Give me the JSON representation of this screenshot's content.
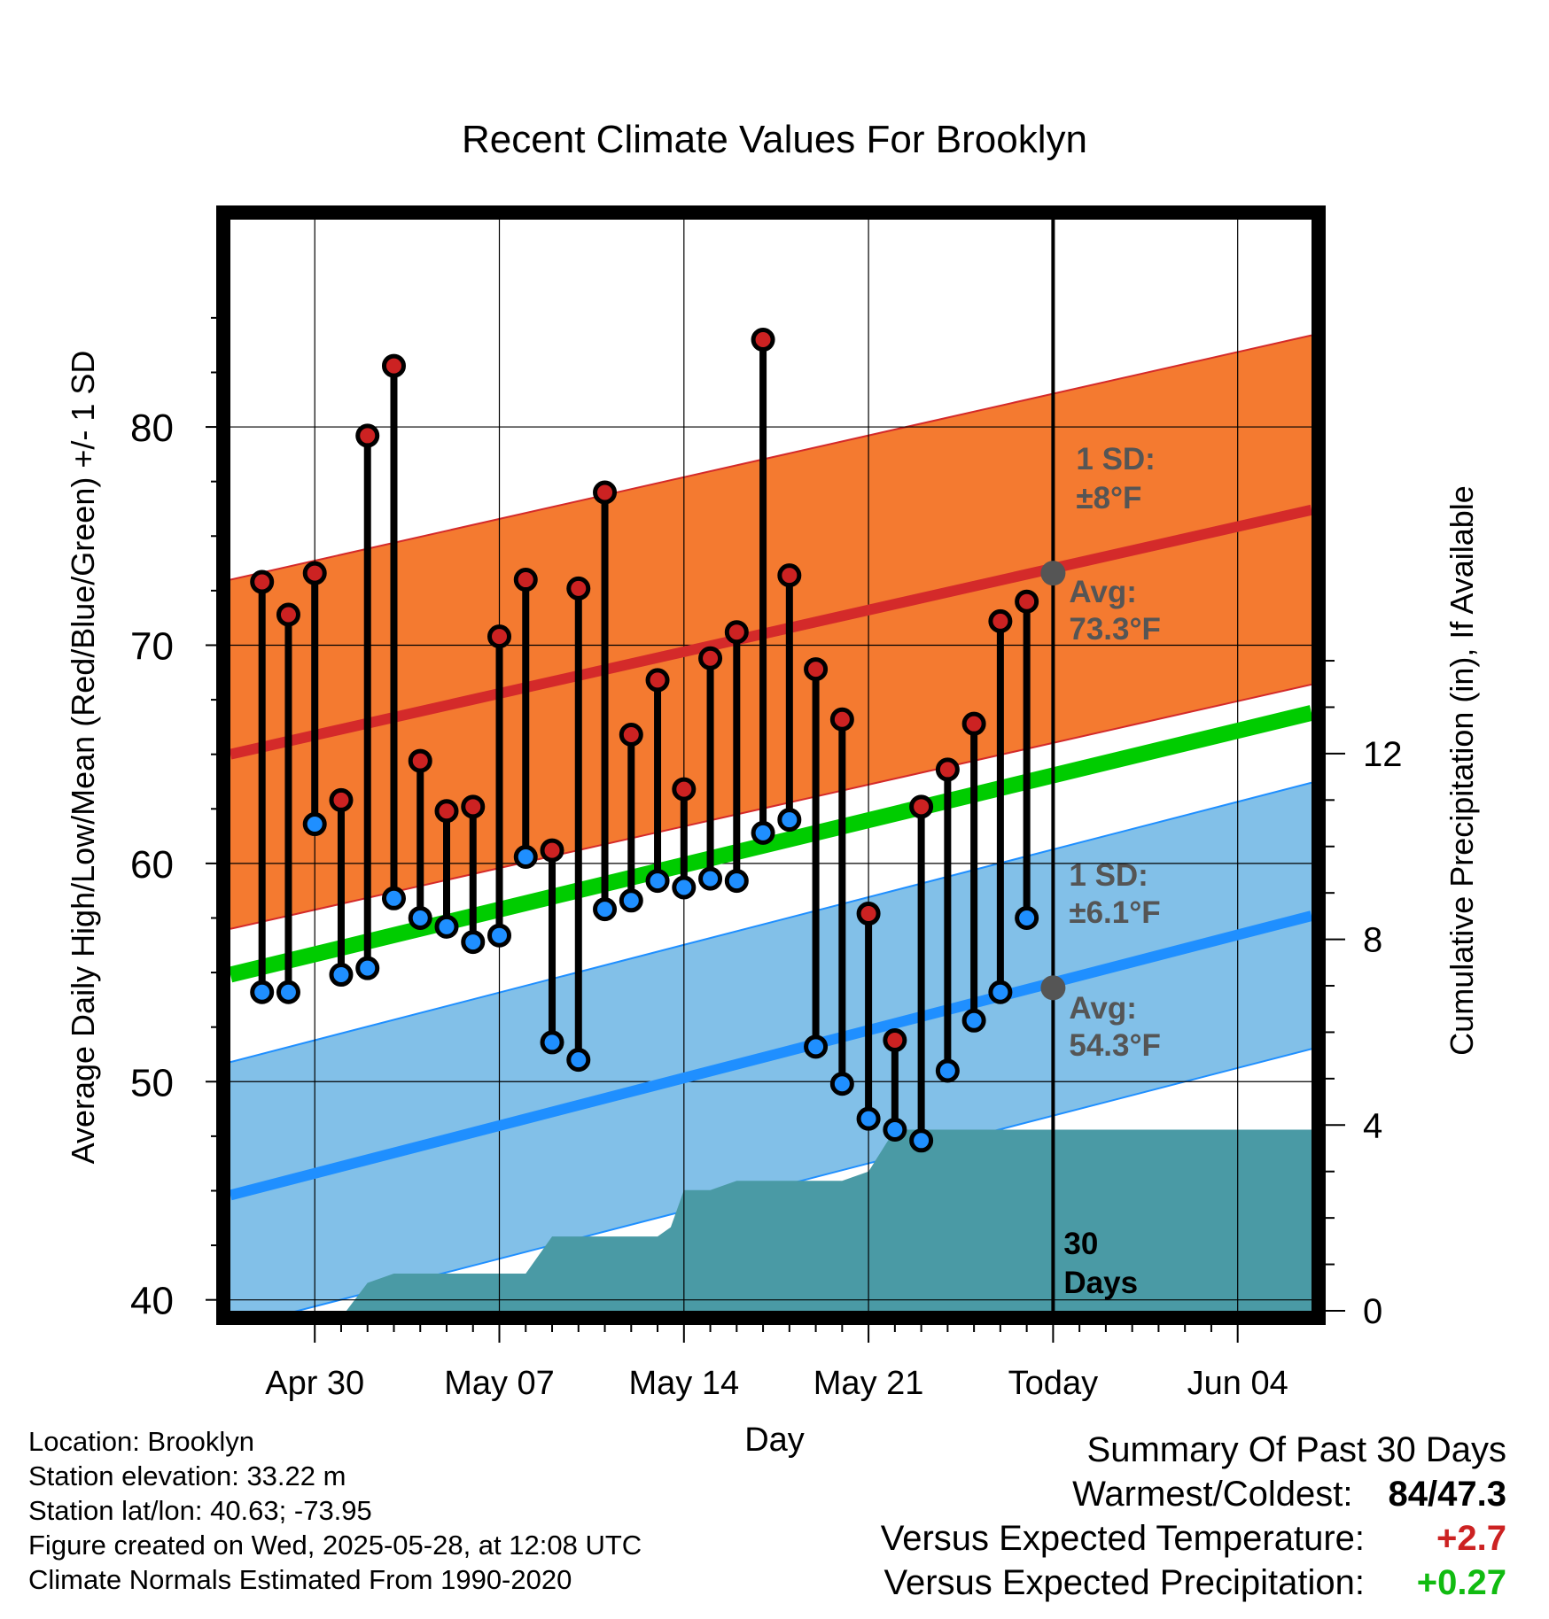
{
  "chart_data": {
    "type": "line",
    "title": "Recent Climate Values For Brooklyn",
    "xlabel": "Day",
    "ylabel": "Average Daily High/Low/Mean (Red/Blue/Green) +/- 1 SD",
    "y2label": "Cumulative Precipitation (in), If Available",
    "x_ticks": [
      "Apr 30",
      "May 07",
      "May 14",
      "May 21",
      "Today",
      "Jun 04"
    ],
    "x_tick_days": [
      0,
      7,
      14,
      21,
      28,
      35
    ],
    "x_range_days": [
      -3.2,
      37.8
    ],
    "today_day": 28,
    "ylim": [
      39.5,
      89.5
    ],
    "y_ticks": [
      40,
      50,
      60,
      70,
      80
    ],
    "y2lim": [
      0,
      23.5
    ],
    "y2_ticks": [
      0,
      4,
      8,
      12
    ],
    "grid": true,
    "normal_high": {
      "start": 65.0,
      "end": 76.2,
      "sd": 8,
      "color": "#d42a2a",
      "band_color": "#f47a30"
    },
    "normal_low": {
      "start": 44.8,
      "end": 57.6,
      "sd": 6.1,
      "color": "#1f8fff",
      "band_color": "#82c0e8"
    },
    "normal_mean": {
      "start": 54.9,
      "end": 66.9,
      "color": "#00cc00"
    },
    "daily": [
      {
        "day": -2,
        "high": 72.9,
        "low": 54.1
      },
      {
        "day": -1,
        "high": 71.4,
        "low": 54.1
      },
      {
        "day": 0,
        "high": 73.3,
        "low": 61.8
      },
      {
        "day": 1,
        "high": 62.9,
        "low": 54.9
      },
      {
        "day": 2,
        "high": 79.6,
        "low": 55.2
      },
      {
        "day": 3,
        "high": 82.8,
        "low": 58.4
      },
      {
        "day": 4,
        "high": 64.7,
        "low": 57.5
      },
      {
        "day": 5,
        "high": 62.4,
        "low": 57.1
      },
      {
        "day": 6,
        "high": 62.6,
        "low": 56.4
      },
      {
        "day": 7,
        "high": 70.4,
        "low": 56.7
      },
      {
        "day": 8,
        "high": 73.0,
        "low": 60.3
      },
      {
        "day": 9,
        "high": 60.6,
        "low": 51.8
      },
      {
        "day": 10,
        "high": 72.6,
        "low": 51.0
      },
      {
        "day": 11,
        "high": 77.0,
        "low": 57.9
      },
      {
        "day": 12,
        "high": 65.9,
        "low": 58.3
      },
      {
        "day": 13,
        "high": 68.4,
        "low": 59.2
      },
      {
        "day": 14,
        "high": 63.4,
        "low": 58.9
      },
      {
        "day": 15,
        "high": 69.4,
        "low": 59.3
      },
      {
        "day": 16,
        "high": 70.6,
        "low": 59.2
      },
      {
        "day": 17,
        "high": 84.0,
        "low": 61.4
      },
      {
        "day": 18,
        "high": 73.2,
        "low": 62.0
      },
      {
        "day": 19,
        "high": 68.9,
        "low": 51.6
      },
      {
        "day": 20,
        "high": 66.6,
        "low": 49.9
      },
      {
        "day": 21,
        "high": 57.7,
        "low": 48.3
      },
      {
        "day": 22,
        "high": 51.9,
        "low": 47.8
      },
      {
        "day": 23,
        "high": 62.6,
        "low": 47.3
      },
      {
        "day": 24,
        "high": 64.3,
        "low": 50.5
      },
      {
        "day": 25,
        "high": 66.4,
        "low": 52.8
      },
      {
        "day": 26,
        "high": 71.1,
        "low": 54.1
      },
      {
        "day": 27,
        "high": 72.0,
        "low": 57.5
      }
    ],
    "precip_cumulative": [
      {
        "day": -3.2,
        "value": 0
      },
      {
        "day": 1.2,
        "value": 0
      },
      {
        "day": 2.0,
        "value": 0.6
      },
      {
        "day": 3.0,
        "value": 0.8
      },
      {
        "day": 8.0,
        "value": 0.8
      },
      {
        "day": 9.0,
        "value": 1.6
      },
      {
        "day": 13.0,
        "value": 1.6
      },
      {
        "day": 13.5,
        "value": 1.8
      },
      {
        "day": 14.0,
        "value": 2.6
      },
      {
        "day": 15.0,
        "value": 2.6
      },
      {
        "day": 16.0,
        "value": 2.8
      },
      {
        "day": 20.0,
        "value": 2.8
      },
      {
        "day": 21.0,
        "value": 3.0
      },
      {
        "day": 22.0,
        "value": 3.9
      },
      {
        "day": 37.8,
        "value": 3.9
      }
    ],
    "annotations": {
      "high_sd_label": "1 SD:",
      "high_sd_value": "±8°F",
      "high_avg_label": "Avg:",
      "high_avg_value": "73.3°F",
      "low_sd_label": "1 SD:",
      "low_sd_value": "±6.1°F",
      "low_avg_label": "Avg:",
      "low_avg_value": "54.3°F",
      "window_label_1": "30",
      "window_label_2": "Days"
    },
    "today_avg_high": 73.3,
    "today_avg_low": 54.3,
    "colors": {
      "high_marker": "#cc2222",
      "low_marker": "#1f8fff",
      "precip": "#4a9aa5",
      "annotation_text": "#555555"
    }
  },
  "info": {
    "location": "Location: Brooklyn",
    "elevation": "Station elevation: 33.22 m",
    "latlon": "Station lat/lon: 40.63; -73.95",
    "created": "Figure created on Wed, 2025-05-28, at 12:08 UTC",
    "normals": "Climate Normals Estimated From 1990-2020"
  },
  "summary": {
    "title": "Summary Of Past 30 Days",
    "warm_cold_label": "Warmest/Coldest:",
    "warm_cold_value": "84/47.3",
    "temp_label": "Versus Expected Temperature:",
    "temp_value": "+2.7",
    "temp_color": "#cc2222",
    "precip_label": "Versus Expected Precipitation:",
    "precip_value": "+0.27",
    "precip_color": "#11bb11"
  }
}
